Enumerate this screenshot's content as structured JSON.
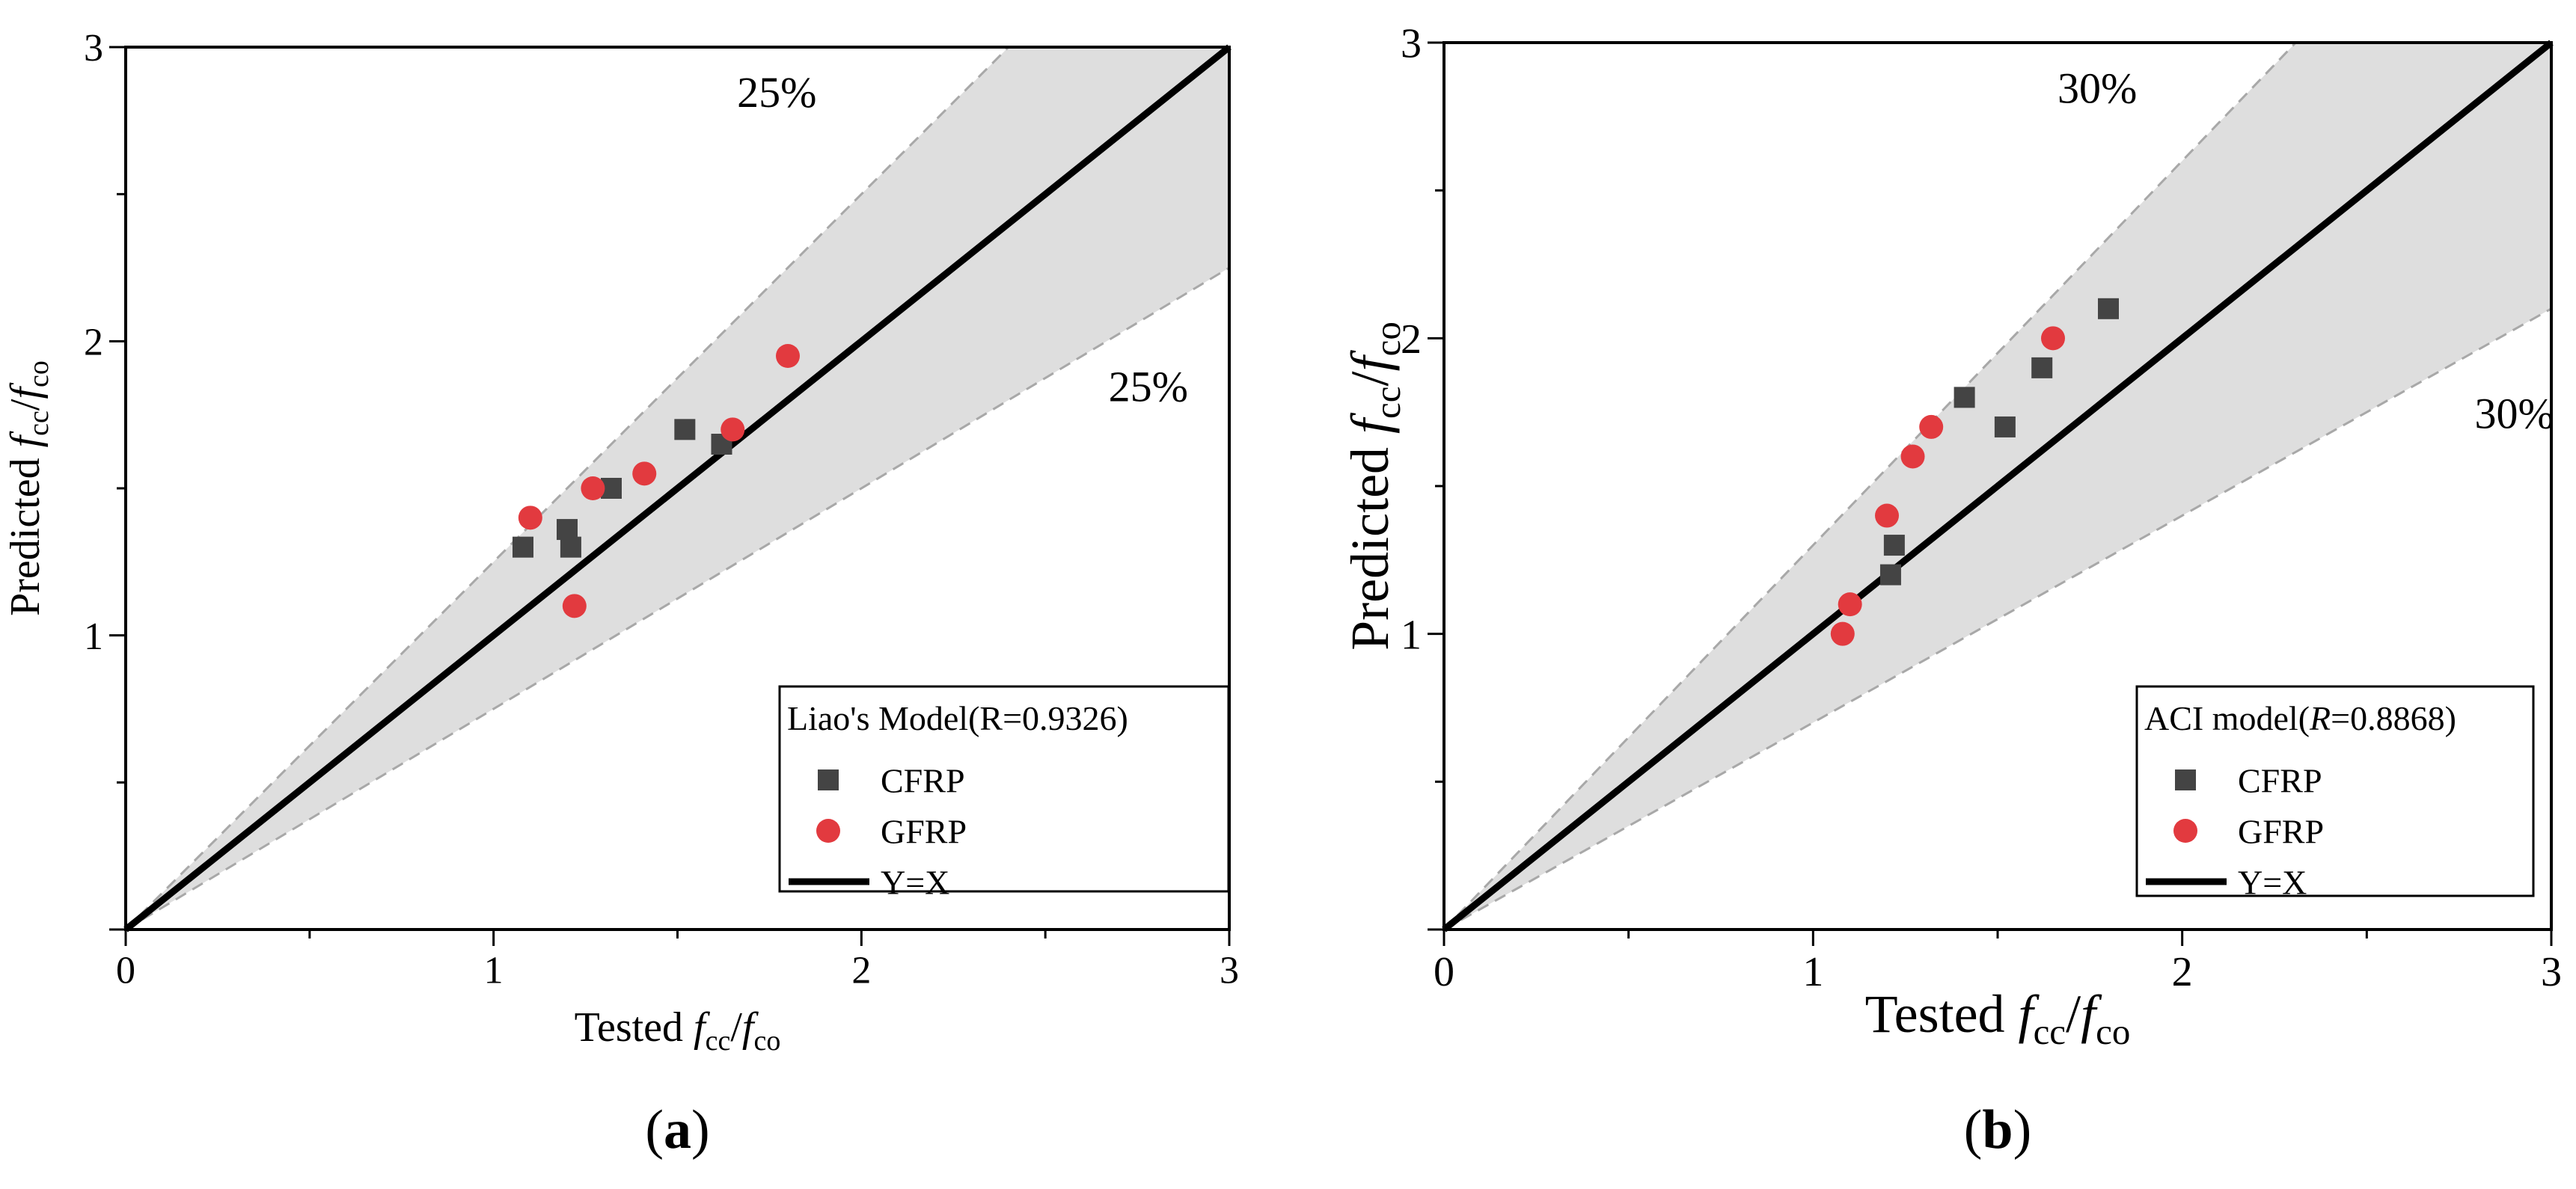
{
  "chart_data": [
    {
      "type": "scatter",
      "panel_label": "a",
      "xlabel": {
        "prefix": "Tested ",
        "num": "f",
        "num_sub": "cc",
        "slash": "/",
        "den": "f",
        "den_sub": "co"
      },
      "ylabel": {
        "prefix": "Predicted ",
        "num": "f",
        "num_sub": "cc",
        "slash": "/",
        "den": "f",
        "den_sub": "co"
      },
      "xlim": [
        0,
        3
      ],
      "ylim": [
        0,
        3
      ],
      "x_ticks": [
        "0",
        "1",
        "2",
        "3"
      ],
      "y_ticks": [
        "1",
        "2",
        "3"
      ],
      "band_percent": 25,
      "upper_band_label": "25%",
      "lower_band_label": "25%",
      "legend": {
        "title_prefix": "Liao's Model(",
        "title_r": "R",
        "title_value": "=0.9326)",
        "placement": "bottom-right",
        "entries": [
          {
            "label": "CFRP",
            "marker": "square"
          },
          {
            "label": "GFRP",
            "marker": "circle"
          },
          {
            "label": "Y=X",
            "marker": "line"
          }
        ]
      },
      "series": [
        {
          "name": "CFRP",
          "color": "#444444",
          "marker": "square",
          "points": [
            [
              1.08,
              1.3
            ],
            [
              1.2,
              1.36
            ],
            [
              1.21,
              1.3
            ],
            [
              1.32,
              1.5
            ],
            [
              1.52,
              1.7
            ],
            [
              1.62,
              1.65
            ]
          ]
        },
        {
          "name": "GFRP",
          "color": "#e23a3f",
          "marker": "circle",
          "points": [
            [
              1.1,
              1.4
            ],
            [
              1.22,
              1.1
            ],
            [
              1.27,
              1.5
            ],
            [
              1.41,
              1.55
            ],
            [
              1.65,
              1.7
            ],
            [
              1.8,
              1.95
            ]
          ]
        }
      ],
      "reference_line": {
        "name": "Y=X",
        "from": [
          0,
          0
        ],
        "to": [
          3,
          3
        ]
      }
    },
    {
      "type": "scatter",
      "panel_label": "b",
      "xlabel": {
        "prefix": "Tested ",
        "num": "f",
        "num_sub": "cc",
        "slash": "/",
        "den": "f",
        "den_sub": "co"
      },
      "ylabel": {
        "prefix": "Predicted ",
        "num": "f",
        "num_sub": "cc",
        "slash": "/",
        "den": "f",
        "den_sub": "co"
      },
      "xlim": [
        0,
        3
      ],
      "ylim": [
        0,
        3
      ],
      "x_ticks": [
        "0",
        "1",
        "2",
        "3"
      ],
      "y_ticks": [
        "1",
        "2",
        "3"
      ],
      "band_percent": 30,
      "upper_band_label": "30%",
      "lower_band_label": "30%",
      "legend": {
        "title_prefix": "ACI model(",
        "title_r": "R",
        "title_value": "=0.8868)",
        "placement": "bottom-right",
        "entries": [
          {
            "label": "CFRP",
            "marker": "square"
          },
          {
            "label": "GFRP",
            "marker": "circle"
          },
          {
            "label": "Y=X",
            "marker": "line"
          }
        ]
      },
      "series": [
        {
          "name": "CFRP",
          "color": "#444444",
          "marker": "square",
          "points": [
            [
              1.21,
              1.2
            ],
            [
              1.22,
              1.3
            ],
            [
              1.41,
              1.8
            ],
            [
              1.52,
              1.7
            ],
            [
              1.62,
              1.9
            ],
            [
              1.8,
              2.1
            ]
          ]
        },
        {
          "name": "GFRP",
          "color": "#e23a3f",
          "marker": "circle",
          "points": [
            [
              1.08,
              1.0
            ],
            [
              1.1,
              1.1
            ],
            [
              1.2,
              1.4
            ],
            [
              1.27,
              1.6
            ],
            [
              1.32,
              1.7
            ],
            [
              1.65,
              2.0
            ]
          ]
        }
      ],
      "reference_line": {
        "name": "Y=X",
        "from": [
          0,
          0
        ],
        "to": [
          3,
          3
        ]
      }
    }
  ],
  "colors": {
    "band_fill": "#dedede",
    "band_edge": "#a8a8a8",
    "reference_line": "#000000"
  }
}
